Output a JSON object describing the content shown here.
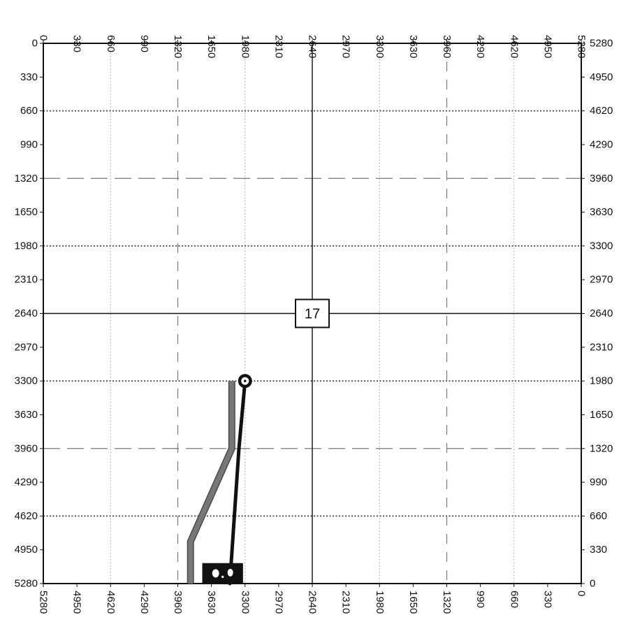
{
  "chart_data": {
    "type": "plat",
    "section_label": "17",
    "axes": {
      "top": {
        "ticks": [
          "0",
          "330",
          "660",
          "990",
          "1320",
          "1650",
          "1980",
          "2310",
          "2640",
          "2970",
          "3300",
          "3630",
          "3960",
          "4290",
          "4620",
          "4950",
          "5280"
        ]
      },
      "bottom": {
        "ticks": [
          "5280",
          "4950",
          "4620",
          "4290",
          "3960",
          "3630",
          "3300",
          "2970",
          "2640",
          "2310",
          "1980",
          "1650",
          "1320",
          "990",
          "660",
          "330",
          "0"
        ]
      },
      "left": {
        "ticks": [
          "0",
          "330",
          "660",
          "990",
          "1320",
          "1650",
          "1980",
          "2310",
          "2640",
          "2970",
          "3300",
          "3630",
          "3960",
          "4290",
          "4620",
          "4950",
          "5280"
        ]
      },
      "right": {
        "ticks": [
          "5280",
          "4950",
          "4620",
          "4290",
          "3960",
          "3630",
          "3300",
          "2970",
          "2640",
          "2310",
          "1980",
          "1650",
          "1320",
          "990",
          "660",
          "330",
          "0"
        ]
      }
    },
    "range": {
      "x": [
        0,
        5280
      ],
      "y": [
        0,
        5280
      ]
    },
    "section_lines": {
      "x": [
        2640
      ],
      "y": [
        2640
      ]
    },
    "quarter_lines_dashed": {
      "x": [
        1320,
        3960
      ],
      "y": [
        1320,
        3960
      ]
    },
    "dotted_lines_horizontal": [
      660,
      1980,
      3300,
      4620
    ],
    "dotted_lines_vertical": [
      660,
      1980,
      3300,
      4620
    ],
    "series": [
      {
        "style": "gray-wide",
        "color": "#777777",
        "points": [
          [
            1850,
            3300
          ],
          [
            1850,
            3960
          ],
          [
            1445,
            4870
          ],
          [
            1445,
            5280
          ]
        ]
      },
      {
        "style": "black-path",
        "color": "#111111",
        "points": [
          [
            1980,
            3300
          ],
          [
            1920,
            3960
          ],
          [
            1830,
            5280
          ]
        ]
      }
    ],
    "markers": [
      {
        "symbol": "open-circle",
        "color": "#111111",
        "at": [
          1980,
          3300
        ]
      },
      {
        "symbol": "pad-box",
        "color": "#111111",
        "range_x": [
          1560,
          1960
        ],
        "range_y": [
          5080,
          5280
        ]
      }
    ]
  }
}
